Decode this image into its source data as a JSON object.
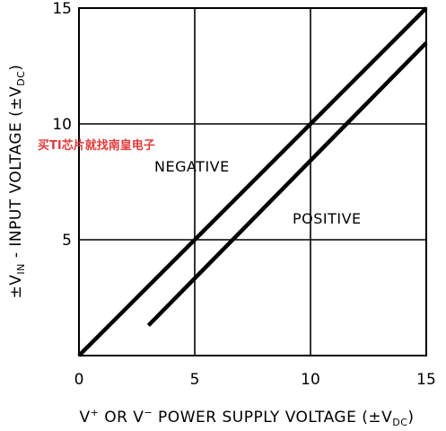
{
  "watermark": "买TI芯片就找南皇电子",
  "chart_data": {
    "type": "line",
    "xlim": [
      0,
      15
    ],
    "ylim": [
      0,
      15
    ],
    "x_ticks": [
      0,
      5,
      10,
      15
    ],
    "y_ticks": [
      5,
      10,
      15
    ],
    "grid": true,
    "xlabel": {
      "pre": "V",
      "sup1": "+",
      "mid": " OR V",
      "sup2": "−",
      "post": " POWER SUPPLY VOLTAGE (±V",
      "sub": "DC",
      "end": ")"
    },
    "ylabel": {
      "pre": "±V",
      "sub1": "IN",
      "mid": " - INPUT VOLTAGE (±V",
      "sub2": "DC",
      "end": ")"
    },
    "series": [
      {
        "name": "NEGATIVE",
        "x": [
          0,
          15
        ],
        "y": [
          0,
          15
        ]
      },
      {
        "name": "POSITIVE",
        "x": [
          3,
          15
        ],
        "y": [
          1.3,
          13.5
        ]
      }
    ],
    "colors": {
      "line": "#000000",
      "grid": "#000000",
      "watermark": "#e23a3a"
    }
  }
}
